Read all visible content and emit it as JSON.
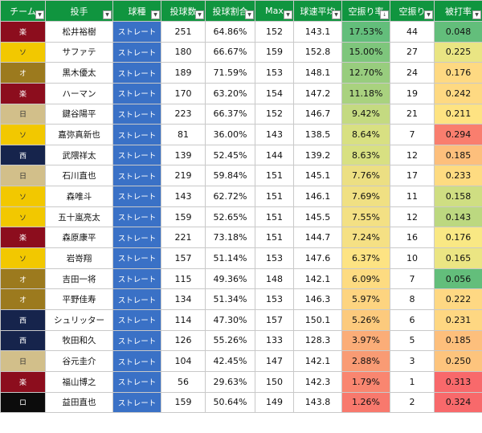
{
  "headers": [
    "チーム",
    "投手",
    "球種",
    "投球数",
    "投球割合",
    "Max",
    "球速平均",
    "空振り率",
    "空振り",
    "被打率"
  ],
  "rows": [
    {
      "team": "楽",
      "pitcher": "松井裕樹",
      "pitch": "ストレート",
      "count": "251",
      "ratio": "64.86%",
      "max": "152",
      "avg": "143.1",
      "whiff_rate": "17.53%",
      "whiffs": "44",
      "avg_against": "0.048"
    },
    {
      "team": "ソ",
      "pitcher": "サファテ",
      "pitch": "ストレート",
      "count": "180",
      "ratio": "66.67%",
      "max": "159",
      "avg": "152.8",
      "whiff_rate": "15.00%",
      "whiffs": "27",
      "avg_against": "0.225"
    },
    {
      "team": "オ",
      "pitcher": "黒木優太",
      "pitch": "ストレート",
      "count": "189",
      "ratio": "71.59%",
      "max": "153",
      "avg": "148.1",
      "whiff_rate": "12.70%",
      "whiffs": "24",
      "avg_against": "0.176"
    },
    {
      "team": "楽",
      "pitcher": "ハーマン",
      "pitch": "ストレート",
      "count": "170",
      "ratio": "63.20%",
      "max": "154",
      "avg": "147.2",
      "whiff_rate": "11.18%",
      "whiffs": "19",
      "avg_against": "0.242"
    },
    {
      "team": "日",
      "pitcher": "鍵谷陽平",
      "pitch": "ストレート",
      "count": "223",
      "ratio": "66.37%",
      "max": "152",
      "avg": "146.7",
      "whiff_rate": "9.42%",
      "whiffs": "21",
      "avg_against": "0.211"
    },
    {
      "team": "ソ",
      "pitcher": "嘉弥真新也",
      "pitch": "ストレート",
      "count": "81",
      "ratio": "36.00%",
      "max": "143",
      "avg": "138.5",
      "whiff_rate": "8.64%",
      "whiffs": "7",
      "avg_against": "0.294"
    },
    {
      "team": "西",
      "pitcher": "武隈祥太",
      "pitch": "ストレート",
      "count": "139",
      "ratio": "52.45%",
      "max": "144",
      "avg": "139.2",
      "whiff_rate": "8.63%",
      "whiffs": "12",
      "avg_against": "0.185"
    },
    {
      "team": "日",
      "pitcher": "石川直也",
      "pitch": "ストレート",
      "count": "219",
      "ratio": "59.84%",
      "max": "151",
      "avg": "145.1",
      "whiff_rate": "7.76%",
      "whiffs": "17",
      "avg_against": "0.233"
    },
    {
      "team": "ソ",
      "pitcher": "森唯斗",
      "pitch": "ストレート",
      "count": "143",
      "ratio": "62.72%",
      "max": "151",
      "avg": "146.1",
      "whiff_rate": "7.69%",
      "whiffs": "11",
      "avg_against": "0.158"
    },
    {
      "team": "ソ",
      "pitcher": "五十嵐亮太",
      "pitch": "ストレート",
      "count": "159",
      "ratio": "52.65%",
      "max": "151",
      "avg": "145.5",
      "whiff_rate": "7.55%",
      "whiffs": "12",
      "avg_against": "0.143"
    },
    {
      "team": "楽",
      "pitcher": "森原康平",
      "pitch": "ストレート",
      "count": "221",
      "ratio": "73.18%",
      "max": "151",
      "avg": "144.7",
      "whiff_rate": "7.24%",
      "whiffs": "16",
      "avg_against": "0.176"
    },
    {
      "team": "ソ",
      "pitcher": "岩嵜翔",
      "pitch": "ストレート",
      "count": "157",
      "ratio": "51.14%",
      "max": "153",
      "avg": "147.6",
      "whiff_rate": "6.37%",
      "whiffs": "10",
      "avg_against": "0.165"
    },
    {
      "team": "オ",
      "pitcher": "吉田一将",
      "pitch": "ストレート",
      "count": "115",
      "ratio": "49.36%",
      "max": "148",
      "avg": "142.1",
      "whiff_rate": "6.09%",
      "whiffs": "7",
      "avg_against": "0.056"
    },
    {
      "team": "オ",
      "pitcher": "平野佳寿",
      "pitch": "ストレート",
      "count": "134",
      "ratio": "51.34%",
      "max": "153",
      "avg": "146.3",
      "whiff_rate": "5.97%",
      "whiffs": "8",
      "avg_against": "0.222"
    },
    {
      "team": "西",
      "pitcher": "シュリッター",
      "pitch": "ストレート",
      "count": "114",
      "ratio": "47.30%",
      "max": "157",
      "avg": "150.1",
      "whiff_rate": "5.26%",
      "whiffs": "6",
      "avg_against": "0.231"
    },
    {
      "team": "西",
      "pitcher": "牧田和久",
      "pitch": "ストレート",
      "count": "126",
      "ratio": "55.26%",
      "max": "133",
      "avg": "128.3",
      "whiff_rate": "3.97%",
      "whiffs": "5",
      "avg_against": "0.185"
    },
    {
      "team": "日",
      "pitcher": "谷元圭介",
      "pitch": "ストレート",
      "count": "104",
      "ratio": "42.45%",
      "max": "147",
      "avg": "142.1",
      "whiff_rate": "2.88%",
      "whiffs": "3",
      "avg_against": "0.250"
    },
    {
      "team": "楽",
      "pitcher": "福山博之",
      "pitch": "ストレート",
      "count": "56",
      "ratio": "29.63%",
      "max": "150",
      "avg": "142.3",
      "whiff_rate": "1.79%",
      "whiffs": "1",
      "avg_against": "0.313"
    },
    {
      "team": "ロ",
      "pitcher": "益田直也",
      "pitch": "ストレート",
      "count": "159",
      "ratio": "50.64%",
      "max": "149",
      "avg": "143.8",
      "whiff_rate": "1.26%",
      "whiffs": "2",
      "avg_against": "0.324"
    }
  ],
  "colors": {
    "header_bg": "#10953f",
    "pitch_bg": "#3a71c6",
    "team_colors": {
      "楽": "#8c0d1d",
      "ソ": "#f2c800",
      "オ": "#9c7a1e",
      "日": "#d2bf8a",
      "西": "#16244c",
      "ロ": "#0c0c0c"
    },
    "whiff_rate_bg": [
      "#63be7b",
      "#7ec67c",
      "#98cd7e",
      "#a9d27f",
      "#c4da81",
      "#d8e082",
      "#d8e082",
      "#ecdf83",
      "#f0e083",
      "#f3e084",
      "#f5e084",
      "#fde383",
      "#fddb81",
      "#fdd480",
      "#fcca7d",
      "#fbad78",
      "#f99b74",
      "#f98670",
      "#f8796d"
    ],
    "avg_against_bg": [
      "#63be7b",
      "#e9e583",
      "#fed982",
      "#fed982",
      "#fee382",
      "#f97e6e",
      "#fdbf7c",
      "#fedb81",
      "#cfde82",
      "#bcd880",
      "#f9e884",
      "#ebe583",
      "#63be7b",
      "#fed883",
      "#fed782",
      "#fdbf7c",
      "#fdc47d",
      "#f8696b",
      "#f8696b"
    ]
  }
}
